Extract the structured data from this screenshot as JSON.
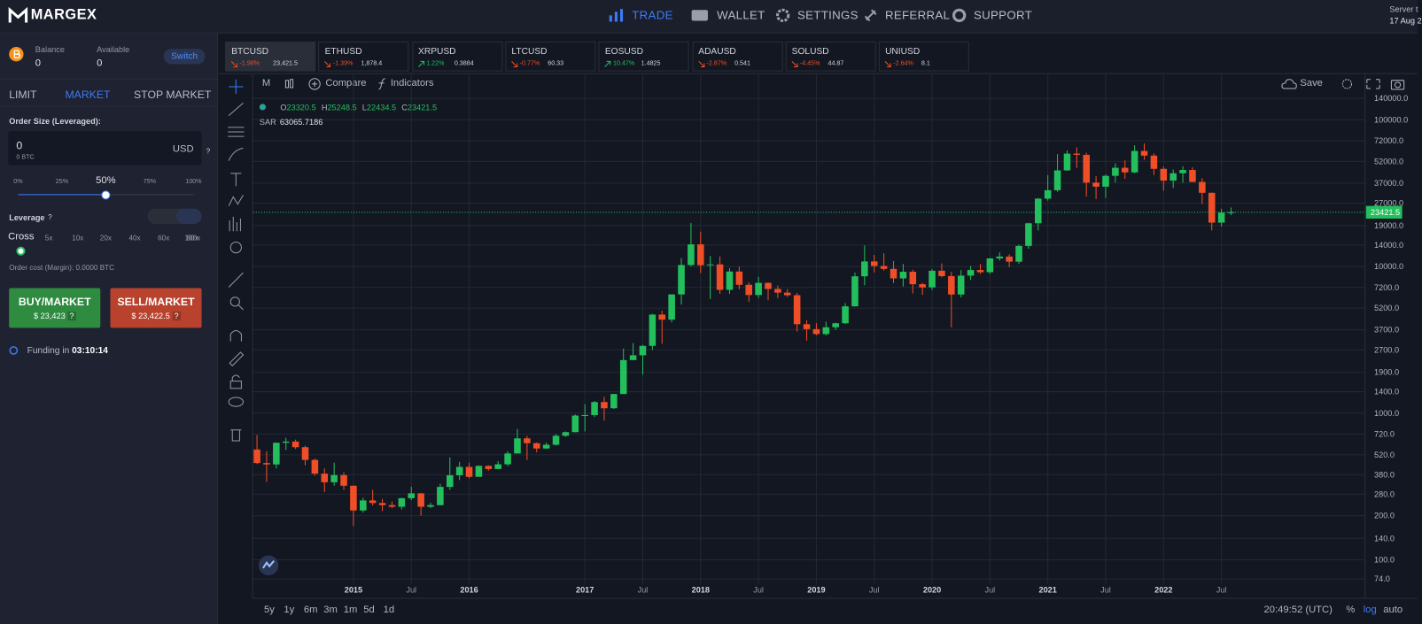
{
  "nav": {
    "logo": "MARGEX",
    "items": [
      "TRADE",
      "WALLET",
      "SETTINGS",
      "REFERRAL",
      "SUPPORT"
    ],
    "server": "Server t",
    "date": "17 Aug 2"
  },
  "order": {
    "balance_label": "Balance",
    "balance": "0",
    "available_label": "Available",
    "available": "0",
    "switch": "Switch",
    "tabs": [
      "LIMIT",
      "MARKET",
      "STOP MARKET"
    ],
    "size_label": "Order Size (Leveraged):",
    "size": "0",
    "size_btc": "0 BTC",
    "currency": "USD",
    "help": "?",
    "percents": [
      "0%",
      "25%",
      "50%",
      "75%",
      "100%"
    ],
    "leverage_label": "Leverage",
    "cross": "Cross",
    "leverages": [
      "5x",
      "10x",
      "20x",
      "40x",
      "60x",
      "80x",
      "100x"
    ],
    "cost": "Order cost (Margin): 0.0000 BTC",
    "buy": "BUY/MARKET",
    "buy_price": "$ 23,423",
    "sell": "SELL/MARKET",
    "sell_price": "$ 23,422.5",
    "funding_label": "Funding in",
    "funding": "03:10:14"
  },
  "tickers": [
    {
      "symbol": "BTCUSD",
      "change": "-1.98%",
      "price": "23,421.5"
    },
    {
      "symbol": "ETHUSD",
      "change": "-1.39%",
      "price": "1,878.4"
    },
    {
      "symbol": "XRPUSD",
      "change": "1.22%",
      "price": "0.3884"
    },
    {
      "symbol": "LTCUSD",
      "change": "-0.77%",
      "price": "60.33"
    },
    {
      "symbol": "EOSUSD",
      "change": "10.47%",
      "price": "1.4825"
    },
    {
      "symbol": "ADAUSD",
      "change": "-2.87%",
      "price": "0.541"
    },
    {
      "symbol": "SOLUSD",
      "change": "-4.45%",
      "price": "44.87"
    },
    {
      "symbol": "UNIUSD",
      "change": "-2.64%",
      "price": "8.1"
    }
  ],
  "toolbar": {
    "interval": "M",
    "compare": "Compare",
    "indicators": "Indicators",
    "save": "Save"
  },
  "chart_data": {
    "type": "candlestick",
    "log_scale": true,
    "grid": true,
    "up_color": "#22bf5c",
    "down_color": "#f04e26",
    "ohlc": [
      {
        "label": "O",
        "value": "23320.5"
      },
      {
        "label": "H",
        "value": "25248.5"
      },
      {
        "label": "L",
        "value": "22434.5"
      },
      {
        "label": "C",
        "value": "23421.5"
      }
    ],
    "indicator": {
      "name": "SAR",
      "value": "63065.7186"
    },
    "last_price": 23421.5,
    "xlim": [
      -0.4,
      114.9
    ],
    "xticks": [
      {
        "value": 10,
        "label": "2015"
      },
      {
        "value": 16,
        "label": "Jul"
      },
      {
        "value": 22,
        "label": "2016"
      },
      {
        "value": 34,
        "label": "2017"
      },
      {
        "value": 40,
        "label": "Jul"
      },
      {
        "value": 46,
        "label": "2018"
      },
      {
        "value": 52,
        "label": "Jul"
      },
      {
        "value": 58,
        "label": "2019"
      },
      {
        "value": 64,
        "label": "Jul"
      },
      {
        "value": 70,
        "label": "2020"
      },
      {
        "value": 76,
        "label": "Jul"
      },
      {
        "value": 82,
        "label": "2021"
      },
      {
        "value": 88,
        "label": "Jul"
      },
      {
        "value": 94,
        "label": "2022"
      },
      {
        "value": 100,
        "label": "Jul"
      }
    ],
    "ylim": [
      70,
      148000
    ],
    "yticks": [
      {
        "value": 140000,
        "label": "140000.0"
      },
      {
        "value": 100000,
        "label": "100000.0"
      },
      {
        "value": 72000,
        "label": "72000.0"
      },
      {
        "value": 52000,
        "label": "52000.0"
      },
      {
        "value": 37000,
        "label": "37000.0"
      },
      {
        "value": 27000,
        "label": "27000.0"
      },
      {
        "value": 19000,
        "label": "19000.0"
      },
      {
        "value": 14000,
        "label": "14000.0"
      },
      {
        "value": 10000,
        "label": "10000.0"
      },
      {
        "value": 7200,
        "label": "7200.0"
      },
      {
        "value": 5200,
        "label": "5200.0"
      },
      {
        "value": 3700,
        "label": "3700.0"
      },
      {
        "value": 2700,
        "label": "2700.0"
      },
      {
        "value": 1900,
        "label": "1900.0"
      },
      {
        "value": 1400,
        "label": "1400.0"
      },
      {
        "value": 1000,
        "label": "1000.0"
      },
      {
        "value": 720,
        "label": "720.0"
      },
      {
        "value": 520,
        "label": "520.0"
      },
      {
        "value": 380,
        "label": "380.0"
      },
      {
        "value": 280,
        "label": "280.0"
      },
      {
        "value": 200,
        "label": "200.0"
      },
      {
        "value": 140,
        "label": "140.0"
      },
      {
        "value": 100,
        "label": "100.0"
      },
      {
        "value": 74,
        "label": "74.0"
      }
    ],
    "candles": [
      [
        565,
        710,
        450,
        457
      ],
      [
        457,
        550,
        340,
        447
      ],
      [
        447,
        630,
        420,
        628
      ],
      [
        628,
        680,
        560,
        640
      ],
      [
        640,
        660,
        570,
        586
      ],
      [
        586,
        600,
        440,
        480
      ],
      [
        480,
        490,
        375,
        387
      ],
      [
        387,
        420,
        290,
        338
      ],
      [
        338,
        460,
        320,
        378
      ],
      [
        378,
        395,
        300,
        320
      ],
      [
        320,
        320,
        170,
        217
      ],
      [
        217,
        265,
        210,
        254
      ],
      [
        254,
        300,
        235,
        244
      ],
      [
        244,
        260,
        215,
        236
      ],
      [
        236,
        250,
        225,
        230
      ],
      [
        230,
        265,
        220,
        263
      ],
      [
        263,
        315,
        255,
        284
      ],
      [
        284,
        285,
        200,
        230
      ],
      [
        230,
        245,
        225,
        236
      ],
      [
        236,
        330,
        235,
        314
      ],
      [
        314,
        500,
        300,
        377
      ],
      [
        377,
        465,
        350,
        430
      ],
      [
        430,
        460,
        360,
        368
      ],
      [
        368,
        440,
        370,
        437
      ],
      [
        437,
        440,
        405,
        416
      ],
      [
        416,
        470,
        415,
        448
      ],
      [
        448,
        550,
        435,
        531
      ],
      [
        531,
        780,
        530,
        673
      ],
      [
        673,
        700,
        480,
        624
      ],
      [
        624,
        630,
        540,
        574
      ],
      [
        574,
        630,
        570,
        609
      ],
      [
        609,
        720,
        600,
        701
      ],
      [
        701,
        750,
        690,
        742
      ],
      [
        742,
        980,
        740,
        963
      ],
      [
        963,
        1150,
        750,
        970
      ],
      [
        970,
        1210,
        940,
        1190
      ],
      [
        1190,
        1290,
        890,
        1080
      ],
      [
        1080,
        1350,
        1070,
        1350
      ],
      [
        1350,
        2760,
        1350,
        2300
      ],
      [
        2300,
        3000,
        2300,
        2480
      ],
      [
        2480,
        2920,
        1830,
        2875
      ],
      [
        2875,
        4750,
        2700,
        4700
      ],
      [
        4700,
        5000,
        2970,
        4340
      ],
      [
        4340,
        6470,
        4160,
        6450
      ],
      [
        6450,
        11400,
        5500,
        10230
      ],
      [
        10230,
        19800,
        10000,
        14150
      ],
      [
        14150,
        17300,
        9000,
        10200
      ],
      [
        10200,
        11800,
        6000,
        10330
      ],
      [
        10330,
        11700,
        6500,
        6930
      ],
      [
        6930,
        9750,
        6500,
        9240
      ],
      [
        9240,
        9990,
        7000,
        7500
      ],
      [
        7500,
        7800,
        5750,
        6390
      ],
      [
        6390,
        8500,
        6100,
        7730
      ],
      [
        7730,
        7760,
        5880,
        7030
      ],
      [
        7030,
        7410,
        6100,
        6630
      ],
      [
        6630,
        7000,
        6200,
        6370
      ],
      [
        6370,
        6600,
        3600,
        4040
      ],
      [
        4040,
        4300,
        3120,
        3740
      ],
      [
        3740,
        4100,
        3400,
        3460
      ],
      [
        3460,
        4200,
        3390,
        3850
      ],
      [
        3850,
        4130,
        3700,
        4100
      ],
      [
        4100,
        5630,
        4050,
        5350
      ],
      [
        5350,
        9100,
        5330,
        8570
      ],
      [
        8570,
        13900,
        7450,
        10820
      ],
      [
        10820,
        12000,
        9100,
        10080
      ],
      [
        10080,
        12300,
        9350,
        9630
      ],
      [
        9630,
        10900,
        7700,
        8300
      ],
      [
        8300,
        10400,
        7300,
        9200
      ],
      [
        9200,
        9500,
        6550,
        7570
      ],
      [
        7570,
        7750,
        6400,
        7200
      ],
      [
        7200,
        9600,
        6900,
        9350
      ],
      [
        9350,
        10500,
        8450,
        8600
      ],
      [
        8600,
        9200,
        3850,
        6440
      ],
      [
        6440,
        9460,
        6150,
        8660
      ],
      [
        8660,
        10080,
        8100,
        9460
      ],
      [
        9460,
        10400,
        8900,
        9140
      ],
      [
        9140,
        11450,
        8900,
        11350
      ],
      [
        11350,
        12480,
        10960,
        11680
      ],
      [
        11680,
        12100,
        9880,
        10780
      ],
      [
        10780,
        14100,
        10400,
        13800
      ],
      [
        13800,
        19900,
        13200,
        19700
      ],
      [
        19700,
        29300,
        17600,
        29000
      ],
      [
        29000,
        41950,
        28100,
        33100
      ],
      [
        33100,
        58300,
        32300,
        45200
      ],
      [
        45200,
        61780,
        44900,
        58800
      ],
      [
        58800,
        64900,
        47000,
        57700
      ],
      [
        57700,
        59600,
        30000,
        37300
      ],
      [
        37300,
        41300,
        28800,
        35000
      ],
      [
        35000,
        42400,
        29300,
        41500
      ],
      [
        41500,
        50500,
        37300,
        47100
      ],
      [
        47100,
        52900,
        39600,
        43800
      ],
      [
        43800,
        67000,
        43300,
        61300
      ],
      [
        61300,
        69000,
        53300,
        57000
      ],
      [
        57000,
        59100,
        42000,
        46300
      ],
      [
        46300,
        48000,
        32900,
        38500
      ],
      [
        38500,
        45800,
        34300,
        43200
      ],
      [
        43200,
        48200,
        37200,
        45500
      ],
      [
        45500,
        47400,
        37600,
        37700
      ],
      [
        37700,
        40000,
        26700,
        31800
      ],
      [
        31800,
        31900,
        17600,
        19900
      ],
      [
        19900,
        24700,
        18800,
        23300
      ],
      [
        23320.5,
        25248.5,
        22434.5,
        23421.5
      ]
    ]
  },
  "footer": {
    "ranges": [
      "5y",
      "1y",
      "6m",
      "3m",
      "1m",
      "5d",
      "1d"
    ],
    "time": "20:49:52 (UTC)",
    "options": [
      "%",
      "log",
      "auto"
    ]
  }
}
